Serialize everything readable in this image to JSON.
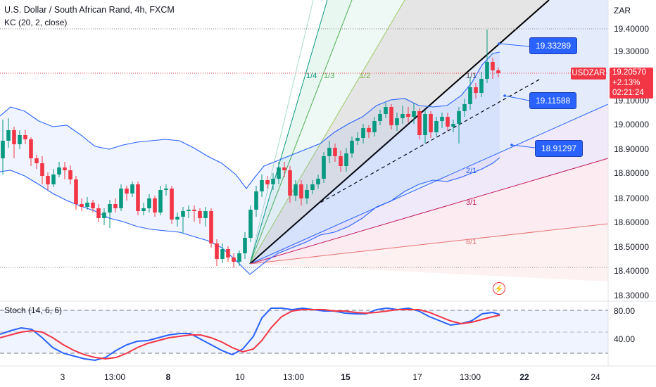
{
  "header": {
    "title": "U.S. Dollar / South African Rand, 4h, FXCM",
    "indicator": "KC (20, 2, close)",
    "currency": "ZAR"
  },
  "stoch": {
    "label": "Stoch (14, 6, 6)",
    "levels": [
      "80.00",
      "40.00"
    ]
  },
  "price_axis": {
    "ticks": [
      "19.40000",
      "19.30000",
      "19.10000",
      "19.00000",
      "18.90000",
      "18.80000",
      "18.70000",
      "18.60000",
      "18.50000",
      "18.40000",
      "18.30000"
    ]
  },
  "time_axis": {
    "ticks": [
      "3",
      "13:00",
      "8",
      "10",
      "13:00",
      "15",
      "17",
      "13:00",
      "22",
      "24"
    ]
  },
  "fan_labels": [
    "1/4",
    "1/3",
    "1/2",
    "1/1",
    "2/1",
    "3/1",
    "8/1"
  ],
  "current": {
    "symbol": "USDZAR",
    "price": "19.20570",
    "change": "+2.13%",
    "countdown": "02:21:24"
  },
  "levels": {
    "upper": "19.33289",
    "middle": "19.11588",
    "lower": "18.91297"
  },
  "colors": {
    "up": "#089981",
    "down": "#f23645",
    "channel": "#2962ff",
    "stoch_k": "#2962ff",
    "stoch_d": "#f23645"
  },
  "icons": {
    "alert": "lightning-icon"
  },
  "chart_data": {
    "type": "candlestick",
    "symbol": "USDZAR",
    "interval": "4h",
    "price_range": [
      18.27,
      19.46
    ],
    "gann_fan_origin_price": 18.42,
    "keltner_channel": {
      "upper": 19.33289,
      "middle": 19.11588,
      "lower": 18.91297
    },
    "last_price": 19.2057,
    "stochastic": {
      "k_length": 14,
      "k_smoothing": 6,
      "d_smoothing": 6,
      "bands": [
        80,
        40
      ]
    }
  }
}
